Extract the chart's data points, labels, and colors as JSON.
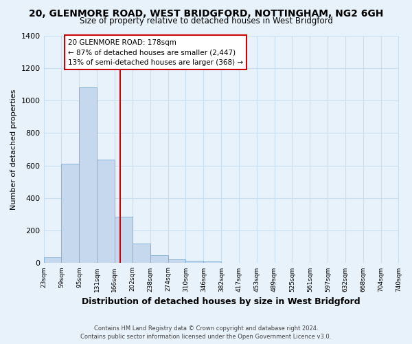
{
  "title": "20, GLENMORE ROAD, WEST BRIDGFORD, NOTTINGHAM, NG2 6GH",
  "subtitle": "Size of property relative to detached houses in West Bridgford",
  "xlabel": "Distribution of detached houses by size in West Bridgford",
  "ylabel": "Number of detached properties",
  "bin_edges": [
    23,
    59,
    95,
    131,
    166,
    202,
    238,
    274,
    310,
    346,
    382,
    417,
    453,
    489,
    525,
    561,
    597,
    632,
    668,
    704,
    740
  ],
  "bar_heights": [
    35,
    610,
    1080,
    635,
    285,
    120,
    48,
    25,
    15,
    10,
    0,
    0,
    0,
    0,
    0,
    0,
    0,
    0,
    0,
    0
  ],
  "bar_color": "#c5d8ee",
  "bar_edgecolor": "#7aadd4",
  "grid_color": "#c8dff0",
  "background_color": "#e8f2fb",
  "property_size": 178,
  "red_line_color": "#cc0000",
  "annotation_line1": "20 GLENMORE ROAD: 178sqm",
  "annotation_line2": "← 87% of detached houses are smaller (2,447)",
  "annotation_line3": "13% of semi-detached houses are larger (368) →",
  "annotation_box_color": "#ffffff",
  "annotation_border_color": "#cc0000",
  "ylim": [
    0,
    1400
  ],
  "footer_line1": "Contains HM Land Registry data © Crown copyright and database right 2024.",
  "footer_line2": "Contains public sector information licensed under the Open Government Licence v3.0."
}
